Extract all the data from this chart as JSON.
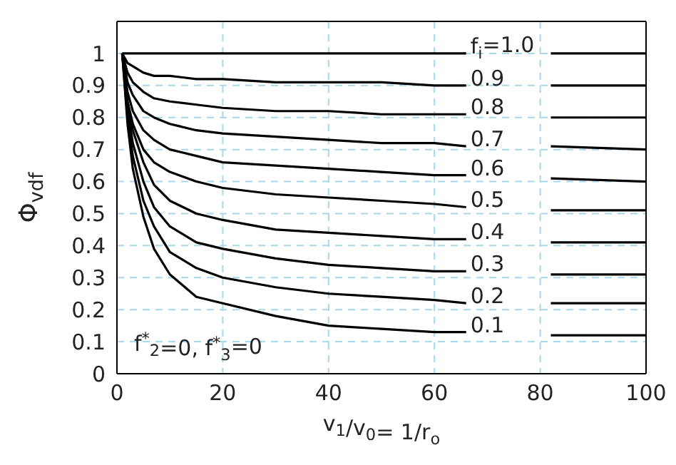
{
  "chart_data": {
    "type": "line",
    "xlabel": "v$_{1}$/v$_{0}$= 1/r$_{o}$",
    "ylabel": "Φ$_{vdf}$",
    "x": [
      1,
      2,
      3,
      5,
      7,
      10,
      15,
      20,
      30,
      40,
      50,
      60,
      66,
      74,
      82,
      100
    ],
    "series": [
      {
        "name": "f$_{i}$=1.0",
        "color": "#000000",
        "values": [
          1,
          1,
          1,
          1,
          1,
          1,
          1,
          1,
          1,
          1,
          1,
          1,
          1,
          null,
          1,
          1
        ]
      },
      {
        "name": "0.9",
        "color": "#000000",
        "values": [
          1,
          0.97,
          0.96,
          0.94,
          0.93,
          0.93,
          0.92,
          0.92,
          0.91,
          0.91,
          0.91,
          0.9,
          0.9,
          null,
          0.9,
          0.9
        ]
      },
      {
        "name": "0.8",
        "color": "#000000",
        "values": [
          1,
          0.94,
          0.91,
          0.88,
          0.86,
          0.85,
          0.84,
          0.83,
          0.82,
          0.82,
          0.81,
          0.81,
          0.81,
          null,
          0.8,
          0.8
        ]
      },
      {
        "name": "0.7",
        "color": "#000000",
        "values": [
          1,
          0.91,
          0.87,
          0.82,
          0.8,
          0.78,
          0.76,
          0.75,
          0.74,
          0.73,
          0.72,
          0.72,
          0.71,
          null,
          0.71,
          0.7
        ]
      },
      {
        "name": "0.6",
        "color": "#000000",
        "values": [
          1,
          0.88,
          0.82,
          0.76,
          0.73,
          0.7,
          0.68,
          0.66,
          0.65,
          0.64,
          0.63,
          0.62,
          0.62,
          null,
          0.61,
          0.6
        ]
      },
      {
        "name": "0.5",
        "color": "#000000",
        "values": [
          1,
          0.85,
          0.78,
          0.7,
          0.66,
          0.63,
          0.6,
          0.58,
          0.56,
          0.55,
          0.54,
          0.53,
          0.52,
          null,
          0.51,
          0.51
        ]
      },
      {
        "name": "0.4",
        "color": "#000000",
        "values": [
          1,
          0.85,
          0.76,
          0.66,
          0.59,
          0.54,
          0.5,
          0.48,
          0.45,
          0.44,
          0.43,
          0.42,
          0.42,
          null,
          0.41,
          0.41
        ]
      },
      {
        "name": "0.3",
        "color": "#000000",
        "values": [
          1,
          0.83,
          0.72,
          0.6,
          0.52,
          0.46,
          0.41,
          0.39,
          0.36,
          0.34,
          0.33,
          0.32,
          0.32,
          null,
          0.31,
          0.31
        ]
      },
      {
        "name": "0.2",
        "color": "#000000",
        "values": [
          1,
          0.8,
          0.68,
          0.54,
          0.46,
          0.38,
          0.33,
          0.3,
          0.27,
          0.25,
          0.24,
          0.23,
          0.22,
          null,
          0.22,
          0.22
        ]
      },
      {
        "name": "0.1",
        "color": "#000000",
        "values": [
          1,
          0.78,
          0.64,
          0.49,
          0.39,
          0.31,
          0.24,
          0.22,
          0.18,
          0.15,
          0.14,
          0.13,
          0.13,
          null,
          0.12,
          0.12
        ]
      }
    ],
    "xlim": [
      0,
      100
    ],
    "xticks": [
      0,
      20,
      40,
      60,
      80,
      100
    ],
    "ylim": [
      0,
      1.1
    ],
    "yticks": [
      0,
      0.1,
      0.2,
      0.3,
      0.4,
      0.5,
      0.6,
      0.7,
      0.8,
      0.9,
      1
    ],
    "grid": true,
    "marker": "none",
    "line_style": "solid",
    "annotations": [
      "f$^{*}$$_{2}$=0, f$^{*}$$_{3}$=0"
    ]
  }
}
